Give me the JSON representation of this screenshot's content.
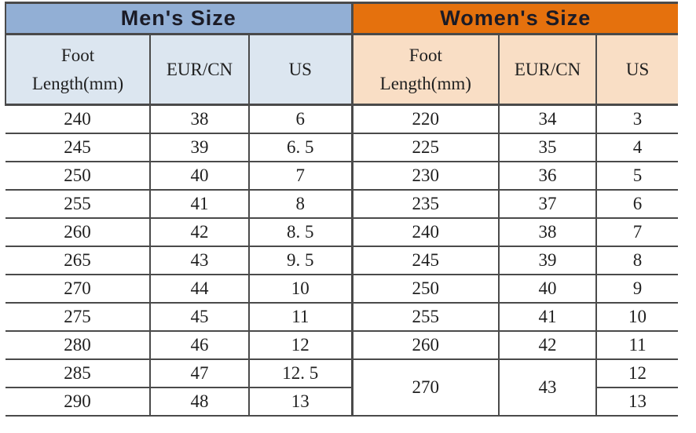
{
  "colors": {
    "men_header_bg": "#92AFD5",
    "men_subheader_bg": "#DCE6F0",
    "women_header_bg": "#E5710D",
    "women_subheader_bg": "#F9DEC5",
    "border": "#4A4A4A",
    "title_text": "#1B1B26",
    "body_text": "#1F1F1F"
  },
  "chart_data": [
    {
      "type": "table",
      "title": "Men's Size",
      "columns": [
        "Foot Length(mm)",
        "EUR/CN",
        "US"
      ],
      "rows": [
        [
          "240",
          "38",
          "6"
        ],
        [
          "245",
          "39",
          "6. 5"
        ],
        [
          "250",
          "40",
          "7"
        ],
        [
          "255",
          "41",
          "8"
        ],
        [
          "260",
          "42",
          "8. 5"
        ],
        [
          "265",
          "43",
          "9. 5"
        ],
        [
          "270",
          "44",
          "10"
        ],
        [
          "275",
          "45",
          "11"
        ],
        [
          "280",
          "46",
          "12"
        ],
        [
          "285",
          "47",
          "12. 5"
        ],
        [
          "290",
          "48",
          "13"
        ]
      ]
    },
    {
      "type": "table",
      "title": "Women's Size",
      "columns": [
        "Foot Length(mm)",
        "EUR/CN",
        "US"
      ],
      "rows": [
        [
          "220",
          "34",
          "3"
        ],
        [
          "225",
          "35",
          "4"
        ],
        [
          "230",
          "36",
          "5"
        ],
        [
          "235",
          "37",
          "6"
        ],
        [
          "240",
          "38",
          "7"
        ],
        [
          "245",
          "39",
          "8"
        ],
        [
          "250",
          "40",
          "9"
        ],
        [
          "255",
          "41",
          "10"
        ],
        [
          "260",
          "42",
          "11"
        ],
        [
          "270",
          "43",
          "12"
        ],
        [
          "270",
          "43",
          "13"
        ]
      ]
    }
  ]
}
